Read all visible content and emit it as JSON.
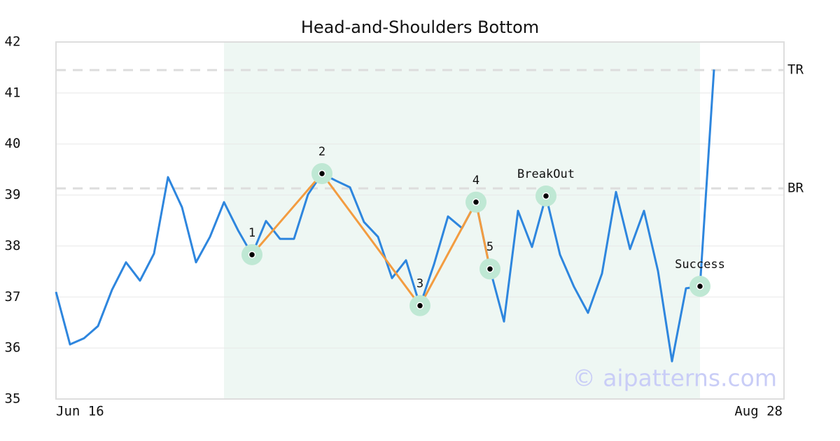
{
  "chart_data": {
    "type": "line",
    "title": "Head-and-Shoulders Bottom",
    "categories": [
      "Jun 16",
      null,
      null,
      null,
      null,
      null,
      null,
      null,
      null,
      null,
      null,
      null,
      null,
      null,
      null,
      null,
      null,
      null,
      null,
      null,
      null,
      null,
      null,
      null,
      null,
      null,
      null,
      null,
      null,
      null,
      null,
      null,
      null,
      null,
      null,
      null,
      null,
      null,
      null,
      null,
      null,
      null,
      null,
      null,
      null,
      null,
      null,
      null,
      null,
      null,
      null,
      null,
      "Aug 28"
    ],
    "values": [
      37.1,
      36.07,
      36.19,
      36.43,
      37.14,
      37.68,
      37.32,
      37.85,
      39.35,
      38.76,
      37.68,
      38.18,
      38.86,
      38.31,
      37.83,
      38.49,
      38.14,
      38.14,
      39.01,
      39.42,
      39.28,
      39.15,
      38.47,
      38.18,
      37.37,
      37.72,
      36.83,
      37.64,
      38.58,
      38.35,
      38.86,
      37.55,
      36.52,
      38.69,
      37.98,
      38.98,
      37.83,
      37.2,
      36.69,
      37.46,
      39.06,
      37.94,
      38.69,
      37.51,
      35.74,
      37.17,
      37.21,
      41.46,
      null,
      null,
      null,
      null,
      null
    ],
    "color": "#2e86de",
    "ylim": [
      35,
      42
    ],
    "yticks": [
      35,
      36,
      37,
      38,
      39,
      40,
      41,
      42
    ],
    "grid": true,
    "shade": {
      "start": 12,
      "end": 46,
      "color": "#eef7f3"
    },
    "levels": [
      {
        "label": "TR",
        "value": 41.45
      },
      {
        "label": "BR",
        "value": 39.13
      }
    ],
    "pattern_color": "#f39c40",
    "points": [
      {
        "label": "1",
        "index": 14,
        "value": 37.83
      },
      {
        "label": "2",
        "index": 19,
        "value": 39.42
      },
      {
        "label": "3",
        "index": 26,
        "value": 36.83
      },
      {
        "label": "4",
        "index": 30,
        "value": 38.86
      },
      {
        "label": "5",
        "index": 31,
        "value": 37.55
      },
      {
        "label": "BreakOut",
        "index": 35,
        "value": 38.98
      },
      {
        "label": "Success",
        "index": 46,
        "value": 37.21
      }
    ],
    "watermark": "© aipatterns.com"
  }
}
